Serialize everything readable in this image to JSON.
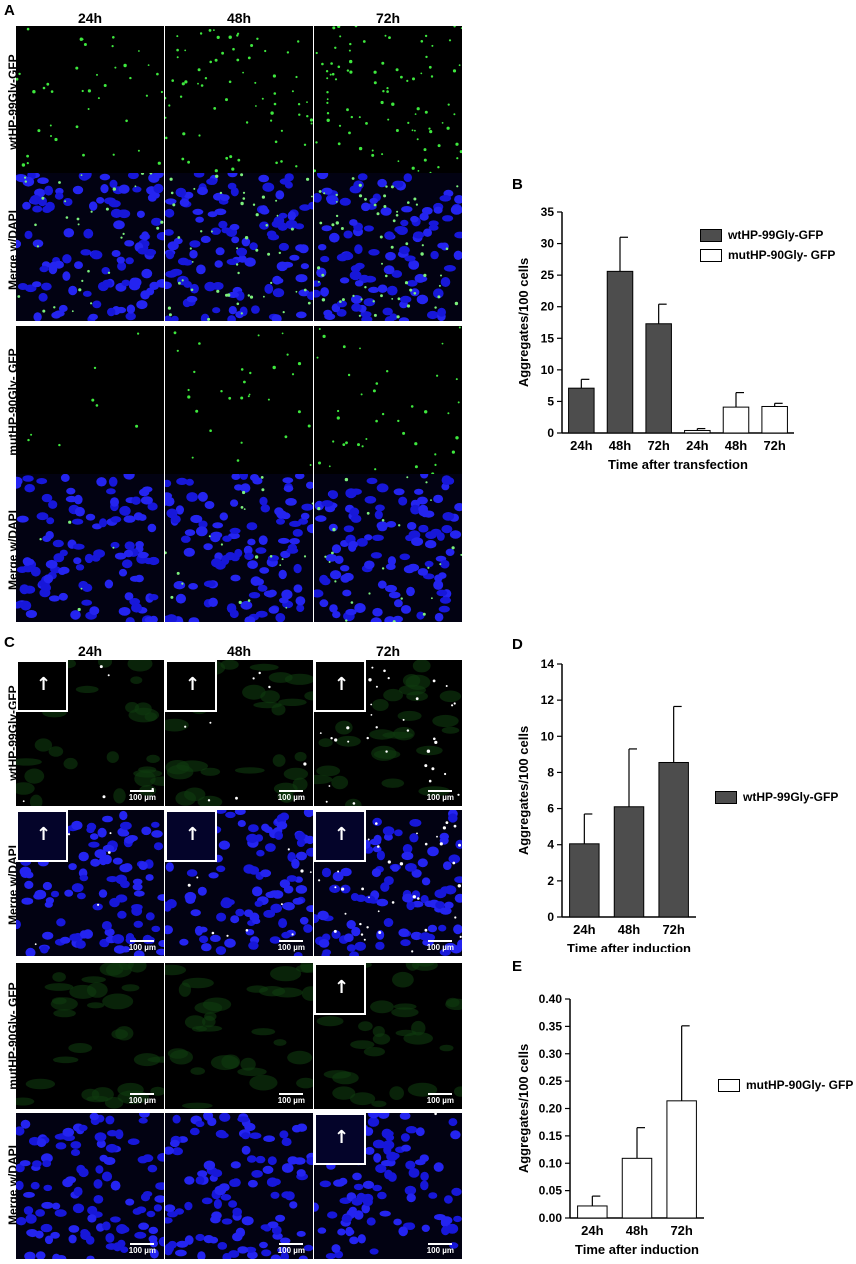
{
  "panelA": {
    "label": "A",
    "columns": [
      "24h",
      "48h",
      "72h"
    ],
    "rows": [
      "wtHP-99Gly-GFP",
      "Merge w/DAPI",
      "mutHP-90Gly- GFP",
      "Merge w/DAPI"
    ]
  },
  "panelC": {
    "label": "C",
    "columns": [
      "24h",
      "48h",
      "72h"
    ],
    "rows": [
      "wtHP-99Gly-GFP",
      "Merge w/DAPI",
      "mutHP-90Gly- GFP",
      "Merge w/DAPI"
    ],
    "scalebar": "100 µm"
  },
  "colors": {
    "wt": "#4d4d4d",
    "mut": "#ffffff",
    "gfp": "#2fd12f",
    "dapi": "#1010d8"
  },
  "chart_data": [
    {
      "panel": "B",
      "type": "bar",
      "categories": [
        "24h",
        "48h",
        "72h",
        "24h",
        "48h",
        "72h"
      ],
      "series": [
        {
          "name": "wtHP-99Gly-GFP",
          "values": [
            7.1,
            25.6,
            17.3,
            null,
            null,
            null
          ],
          "errors": [
            1.4,
            5.4,
            3.1,
            null,
            null,
            null
          ]
        },
        {
          "name": "mutHP-90Gly- GFP",
          "values": [
            null,
            null,
            null,
            0.4,
            4.1,
            4.2
          ],
          "errors": [
            null,
            null,
            null,
            0.3,
            2.3,
            0.5
          ]
        }
      ],
      "ylabel": "Aggregates/100 cells",
      "xlabel": "Time after transfection",
      "ylim": [
        0,
        35
      ],
      "yticks": [
        "0",
        "5",
        "10",
        "15",
        "20",
        "25",
        "30",
        "35"
      ],
      "legend": "top-right"
    },
    {
      "panel": "D",
      "type": "bar",
      "categories": [
        "24h",
        "48h",
        "72h"
      ],
      "series": [
        {
          "name": "wtHP-99Gly-GFP",
          "values": [
            4.05,
            6.1,
            8.55
          ],
          "errors": [
            1.65,
            3.2,
            3.1
          ]
        }
      ],
      "ylabel": "Aggregates/100 cells",
      "xlabel": "Time after induction",
      "ylim": [
        0,
        14
      ],
      "yticks": [
        "0",
        "2",
        "4",
        "6",
        "8",
        "10",
        "12",
        "14"
      ],
      "legend": "right"
    },
    {
      "panel": "E",
      "type": "bar",
      "categories": [
        "24h",
        "48h",
        "72h"
      ],
      "series": [
        {
          "name": "mutHP-90Gly- GFP",
          "values": [
            0.022,
            0.109,
            0.214
          ],
          "errors": [
            0.018,
            0.056,
            0.137
          ]
        }
      ],
      "ylabel": "Aggregates/100 cells",
      "xlabel": "Time after induction",
      "ylim": [
        0,
        0.4
      ],
      "yticks": [
        "0.00",
        "0.05",
        "0.10",
        "0.15",
        "0.20",
        "0.25",
        "0.30",
        "0.35",
        "0.40"
      ],
      "legend": "right"
    }
  ]
}
